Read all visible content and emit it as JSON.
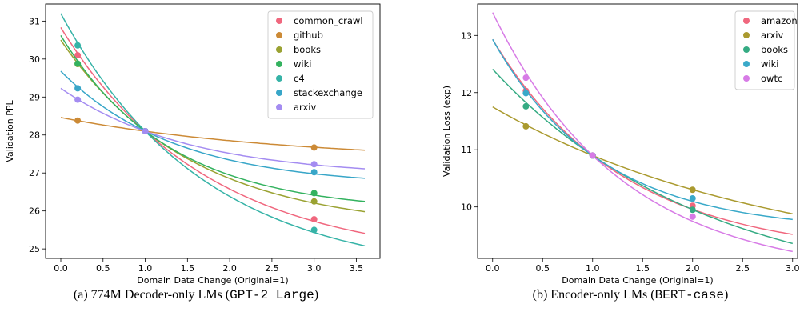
{
  "chart_data": [
    {
      "type": "line",
      "caption": {
        "text": "(a) 774M Decoder-only LMs (",
        "code": "GPT-2 Large",
        "close": ")"
      },
      "xlabel": "Domain Data Change (Original=1)",
      "ylabel": "Validation PPL",
      "xlim": [
        -0.18,
        3.78
      ],
      "ylim": [
        24.75,
        31.45
      ],
      "xticks": [
        0.0,
        0.5,
        1.0,
        1.5,
        2.0,
        2.5,
        3.0,
        3.5
      ],
      "xtick_labels": [
        "0.0",
        "0.5",
        "1.0",
        "1.5",
        "2.0",
        "2.5",
        "3.0",
        "3.5"
      ],
      "yticks": [
        25,
        26,
        27,
        28,
        29,
        30,
        31
      ],
      "ytick_labels": [
        "25",
        "26",
        "27",
        "28",
        "29",
        "30",
        "31"
      ],
      "legend_position": "top-right",
      "curve_x": [
        0.0,
        1.0,
        3.6
      ],
      "series": [
        {
          "name": "common_crawl",
          "color": "#f0677e",
          "curve": [
            30.83,
            28.1,
            25.41
          ],
          "points": [
            [
              0.2,
              30.1
            ],
            [
              1.0,
              28.1
            ],
            [
              3.0,
              25.78
            ]
          ]
        },
        {
          "name": "github",
          "color": "#cc8a36",
          "curve": [
            28.46,
            28.1,
            27.6
          ],
          "points": [
            [
              0.2,
              28.38
            ],
            [
              1.0,
              28.1
            ],
            [
              3.0,
              27.67
            ]
          ]
        },
        {
          "name": "books",
          "color": "#9aa232",
          "curve": [
            30.5,
            28.1,
            25.98
          ],
          "points": [
            [
              0.2,
              29.87
            ],
            [
              1.0,
              28.1
            ],
            [
              3.0,
              26.25
            ]
          ]
        },
        {
          "name": "wiki",
          "color": "#33b25f",
          "curve": [
            30.62,
            28.1,
            26.25
          ],
          "points": [
            [
              0.2,
              29.88
            ],
            [
              1.0,
              28.1
            ],
            [
              3.0,
              26.47
            ]
          ]
        },
        {
          "name": "c4",
          "color": "#36b3a7",
          "curve": [
            31.2,
            28.1,
            25.08
          ],
          "points": [
            [
              0.2,
              30.36
            ],
            [
              1.0,
              28.1
            ],
            [
              3.0,
              25.5
            ]
          ]
        },
        {
          "name": "stackexchange",
          "color": "#38a6c8",
          "curve": [
            29.68,
            28.1,
            26.86
          ],
          "points": [
            [
              0.2,
              29.23
            ],
            [
              1.0,
              28.1
            ],
            [
              3.0,
              27.02
            ]
          ]
        },
        {
          "name": "arxiv",
          "color": "#a48cf1",
          "curve": [
            29.23,
            28.1,
            27.11
          ],
          "points": [
            [
              0.2,
              28.93
            ],
            [
              1.0,
              28.1
            ],
            [
              3.0,
              27.23
            ]
          ]
        }
      ]
    },
    {
      "type": "line",
      "caption": {
        "text": "(b) Encoder-only LMs (",
        "code": "BERT-case",
        "close": ")"
      },
      "xlabel": "Domain Data Change (Original=1)",
      "ylabel": "Validation Loss (exp)",
      "xlim": [
        -0.15,
        3.05
      ],
      "ylim": [
        9.1,
        13.55
      ],
      "xticks": [
        0.0,
        0.5,
        1.0,
        1.5,
        2.0,
        2.5,
        3.0
      ],
      "xtick_labels": [
        "0.0",
        "0.5",
        "1.0",
        "1.5",
        "2.0",
        "2.5",
        "3.0"
      ],
      "yticks": [
        10,
        11,
        12,
        13
      ],
      "ytick_labels": [
        "10",
        "11",
        "12",
        "13"
      ],
      "legend_position": "top-right",
      "curve_x": [
        0.0,
        1.0,
        3.0
      ],
      "series": [
        {
          "name": "amazon",
          "color": "#f0677e",
          "curve": [
            12.93,
            10.9,
            9.52
          ],
          "points": [
            [
              0.333,
              12.03
            ],
            [
              1.0,
              10.9
            ],
            [
              2.0,
              10.02
            ]
          ]
        },
        {
          "name": "arxiv",
          "color": "#aa9a2f",
          "curve": [
            11.75,
            10.9,
            9.88
          ],
          "points": [
            [
              0.333,
              11.41
            ],
            [
              1.0,
              10.9
            ],
            [
              2.0,
              10.3
            ]
          ]
        },
        {
          "name": "books",
          "color": "#35ab83",
          "curve": [
            12.41,
            10.9,
            9.36
          ],
          "points": [
            [
              0.333,
              11.76
            ],
            [
              1.0,
              10.9
            ],
            [
              2.0,
              9.95
            ]
          ]
        },
        {
          "name": "wiki",
          "color": "#39a9c9",
          "curve": [
            12.93,
            10.9,
            9.78
          ],
          "points": [
            [
              0.333,
              11.99
            ],
            [
              1.0,
              10.9
            ],
            [
              2.0,
              10.15
            ]
          ]
        },
        {
          "name": "owtc",
          "color": "#d77be6",
          "curve": [
            13.4,
            10.9,
            9.22
          ],
          "points": [
            [
              0.333,
              12.26
            ],
            [
              1.0,
              10.9
            ],
            [
              2.0,
              9.83
            ]
          ]
        }
      ]
    }
  ]
}
